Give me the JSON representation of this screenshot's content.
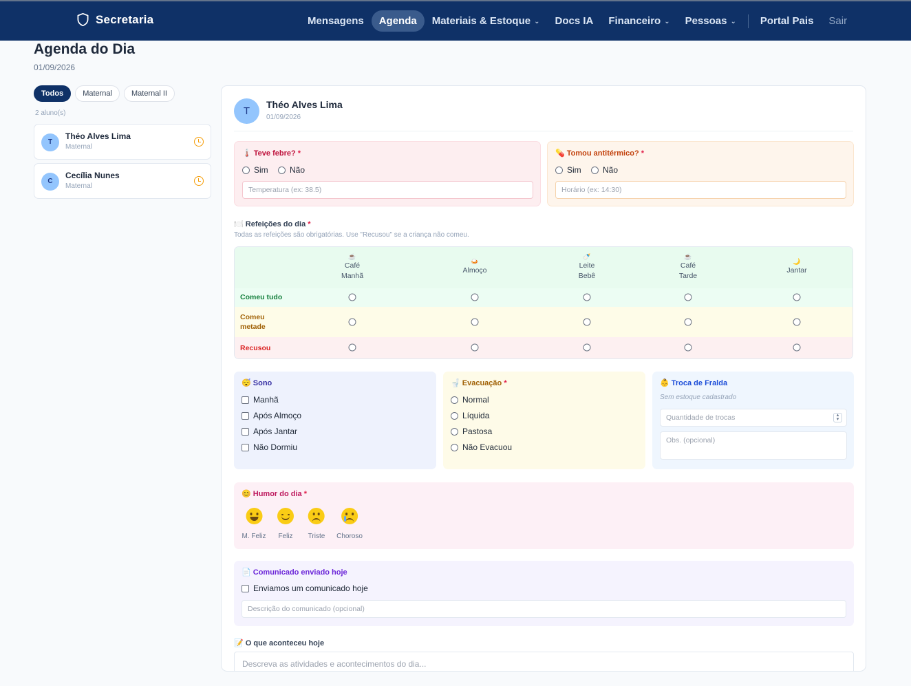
{
  "nav": {
    "brand": "Secretaria",
    "items": [
      {
        "label": "Mensagens"
      },
      {
        "label": "Agenda"
      },
      {
        "label": "Materiais & Estoque"
      },
      {
        "label": "Docs IA"
      },
      {
        "label": "Financeiro"
      },
      {
        "label": "Pessoas"
      },
      {
        "label": "Portal Pais"
      },
      {
        "label": "Sair"
      }
    ]
  },
  "page": {
    "title": "Agenda do Dia",
    "date": "01/09/2026"
  },
  "filters": [
    "Todos",
    "Maternal",
    "Maternal II"
  ],
  "student_count": "2 aluno(s)",
  "students": [
    {
      "initial": "T",
      "name": "Théo Alves Lima",
      "class": "Maternal"
    },
    {
      "initial": "C",
      "name": "Cecília Nunes",
      "class": "Maternal"
    }
  ],
  "form": {
    "initial": "T",
    "name": "Théo Alves Lima",
    "date": "01/09/2026",
    "fever": {
      "label": "Teve febre?",
      "required": "*",
      "yes": "Sim",
      "no": "Não",
      "placeholder": "Temperatura (ex: 38.5)"
    },
    "antipyretic": {
      "label": "Tomou antitérmico?",
      "required": "*",
      "yes": "Sim",
      "no": "Não",
      "placeholder": "Horário (ex: 14:30)"
    },
    "meals": {
      "label": "Refeições do dia",
      "required": "*",
      "hint": "Todas as refeições são obrigatórias. Use \"Recusou\" se a criança não comeu.",
      "columns": [
        {
          "icon": "☕",
          "l1": "Café",
          "l2": "Manhã"
        },
        {
          "icon": "🍛",
          "l1": "Almoço",
          "l2": ""
        },
        {
          "icon": "🍼",
          "l1": "Leite",
          "l2": "Bebê"
        },
        {
          "icon": "☕",
          "l1": "Café",
          "l2": "Tarde"
        },
        {
          "icon": "🌙",
          "l1": "Jantar",
          "l2": ""
        }
      ],
      "rows": [
        {
          "l1": "Comeu tudo",
          "l2": "",
          "color": "#15803d"
        },
        {
          "l1": "Comeu",
          "l2": "metade",
          "color": "#a16207"
        },
        {
          "l1": "Recusou",
          "l2": "",
          "color": "#dc2626"
        }
      ]
    },
    "sleep": {
      "label": "Sono",
      "options": [
        "Manhã",
        "Após Almoço",
        "Após Jantar",
        "Não Dormiu"
      ]
    },
    "evacuation": {
      "label": "Evacuação",
      "required": "*",
      "options": [
        "Normal",
        "Líquida",
        "Pastosa",
        "Não Evacuou"
      ]
    },
    "diaper": {
      "label": "Troca de Fralda",
      "note": "Sem estoque cadastrado",
      "qty_placeholder": "Quantidade de trocas",
      "obs_placeholder": "Obs. (opcional)"
    },
    "mood": {
      "label": "Humor do dia",
      "required": "*",
      "options": [
        "M. Feliz",
        "Feliz",
        "Triste",
        "Choroso"
      ]
    },
    "notice": {
      "label": "Comunicado enviado hoje",
      "checkbox": "Enviamos um comunicado hoje",
      "placeholder": "Descrição do comunicado (opcional)"
    },
    "happened": {
      "label": "O que aconteceu hoje",
      "placeholder": "Descreva as atividades e acontecimentos do dia..."
    }
  },
  "colors": {
    "nav_bg": "#0f3167",
    "fever_bg": "#fdeef0",
    "antipyretic_bg": "#fef5ec",
    "sleep_bg": "#eef2fd",
    "evac_bg": "#fefbe8",
    "diaper_bg": "#eff6fe",
    "mood_bg": "#fdf0f6",
    "notice_bg": "#f5f3fe"
  }
}
